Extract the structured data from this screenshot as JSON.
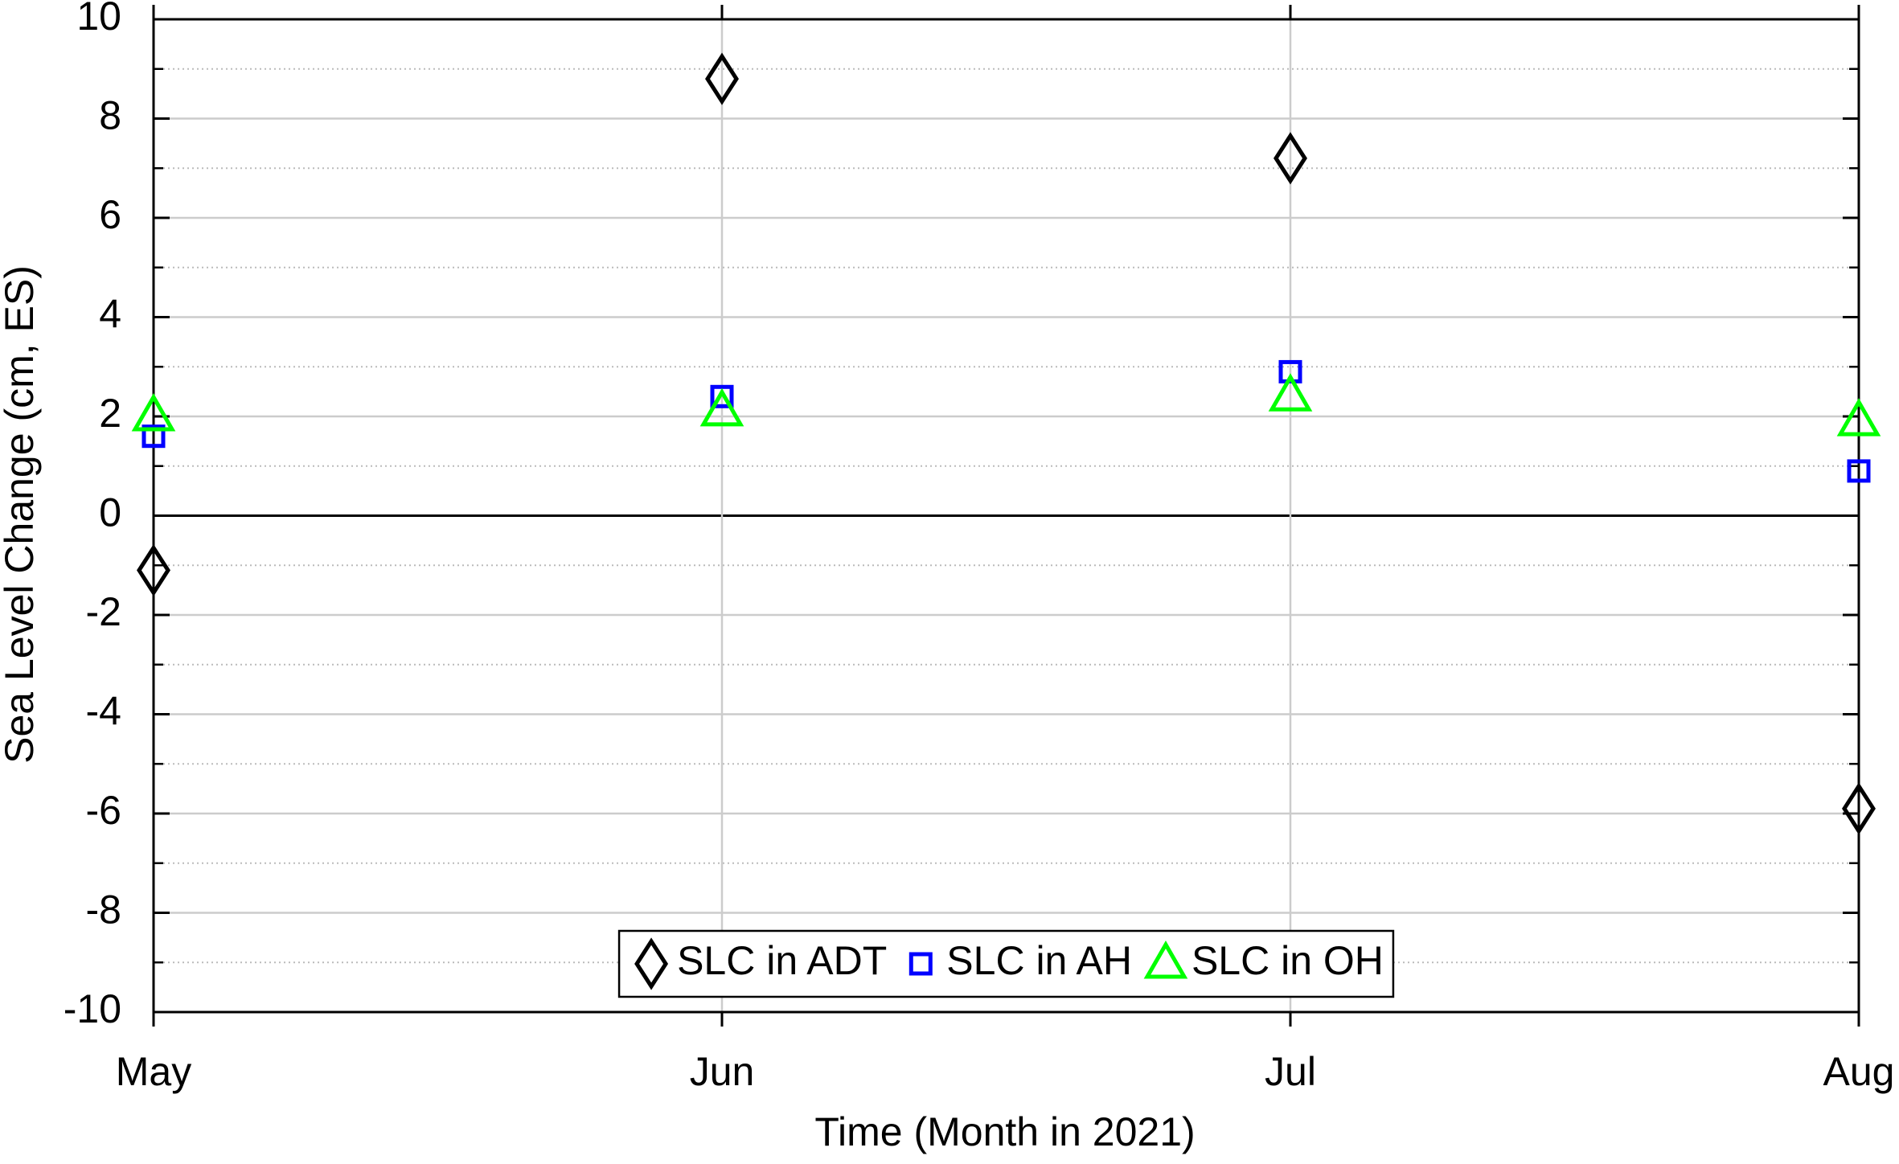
{
  "chart_data": {
    "type": "scatter",
    "xlabel": "Time (Month in 2021)",
    "ylabel": "Sea Level Change (cm, ES)",
    "categories": [
      "May",
      "Jun",
      "Jul",
      "Aug"
    ],
    "series": [
      {
        "name": "SLC in ADT",
        "color": "#000000",
        "marker": "diamond",
        "values": [
          -1.1,
          8.8,
          7.2,
          -5.9
        ]
      },
      {
        "name": "SLC in AH",
        "color": "#0000ff",
        "marker": "square",
        "values": [
          1.6,
          2.4,
          2.9,
          0.9
        ]
      },
      {
        "name": "SLC in OH",
        "color": "#00ff00",
        "marker": "triangle",
        "values": [
          2.0,
          2.1,
          2.4,
          1.9
        ]
      }
    ],
    "ylim": [
      -10,
      10
    ],
    "yticks": [
      -10,
      -8,
      -6,
      -4,
      -2,
      0,
      2,
      4,
      6,
      8,
      10
    ],
    "grid": true,
    "legend": "bottom"
  }
}
